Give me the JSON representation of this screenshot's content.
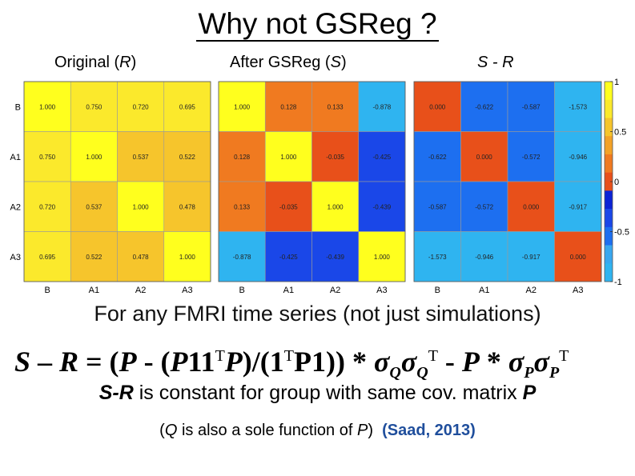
{
  "title": "Why not GSReg ?",
  "panel_labels": {
    "left_text": "Original (",
    "left_var": "R",
    "left_close": ")",
    "mid_text": "After GSReg (",
    "mid_var": "S",
    "mid_close": ")",
    "right_text": "S - R"
  },
  "caption1": "For any FMRI time series (not just simulations)",
  "formula": {
    "lhs_S": "S",
    "minus": " – ",
    "lhs_R": "R",
    "eq": " = (",
    "P1": "P",
    "mid1": " - (",
    "P2": "P",
    "ones1": "11",
    "T1": "T",
    "P3": "P",
    "mid2": ")/(1",
    "T2": "T",
    "P4": "P",
    "mid3": "1))   *  ",
    "sigma1": "σ",
    "subQ1": "Q",
    "sigma2": "σ",
    "subQ2": "Q",
    "T3": "T",
    "mid4": " - ",
    "P5": "P",
    "star": " * ",
    "sigma3": "σ",
    "subP1": "P",
    "sigma4": "σ",
    "subP2": "P",
    "T4": "T"
  },
  "caption2": {
    "var": "S-R",
    "text": " is constant for group with same cov. matrix ",
    "P": "P"
  },
  "caption3": {
    "open": "(",
    "Q": "Q",
    "text": " is also a sole function of ",
    "P": "P",
    "close": ")",
    "citation": "(Saad, 2013)"
  },
  "chart_data": [
    {
      "type": "heatmap",
      "title": "Original (R)",
      "row_labels": [
        "B",
        "A1",
        "A2",
        "A3"
      ],
      "col_labels": [
        "B",
        "A1",
        "A2",
        "A3"
      ],
      "values": [
        [
          1.0,
          0.75,
          0.72,
          0.695
        ],
        [
          0.75,
          1.0,
          0.537,
          0.522
        ],
        [
          0.72,
          0.537,
          1.0,
          0.478
        ],
        [
          0.695,
          0.522,
          0.478,
          1.0
        ]
      ],
      "cell_labels": [
        [
          "1.000",
          "0.750",
          "0.720",
          "0.695"
        ],
        [
          "0.750",
          "1.000",
          "0.537",
          "0.522"
        ],
        [
          "0.720",
          "0.537",
          "1.000",
          "0.478"
        ],
        [
          "0.695",
          "0.522",
          "0.478",
          "1.000"
        ]
      ]
    },
    {
      "type": "heatmap",
      "title": "After GSReg (S)",
      "row_labels": [],
      "col_labels": [
        "B",
        "A1",
        "A2",
        "A3"
      ],
      "values": [
        [
          1.0,
          0.128,
          0.133,
          -0.878
        ],
        [
          0.128,
          1.0,
          -0.035,
          -0.425
        ],
        [
          0.133,
          -0.035,
          1.0,
          -0.439
        ],
        [
          -0.878,
          -0.425,
          -0.439,
          1.0
        ]
      ],
      "cell_labels": [
        [
          "1.000",
          "0.128",
          "0.133",
          "-0.878"
        ],
        [
          "0.128",
          "1.000",
          "-0.035",
          "-0.425"
        ],
        [
          "0.133",
          "-0.035",
          "1.000",
          "-0.439"
        ],
        [
          "-0.878",
          "-0.425",
          "-0.439",
          "1.000"
        ]
      ]
    },
    {
      "type": "heatmap",
      "title": "S - R",
      "row_labels": [],
      "col_labels": [
        "B",
        "A1",
        "A2",
        "A3"
      ],
      "values": [
        [
          0.0,
          -0.622,
          -0.587,
          -1.573
        ],
        [
          -0.622,
          0.0,
          -0.572,
          -0.946
        ],
        [
          -0.587,
          -0.572,
          0.0,
          -0.917
        ],
        [
          -1.573,
          -0.946,
          -0.917,
          0.0
        ]
      ],
      "cell_labels": [
        [
          "0.000",
          "-0.622",
          "-0.587",
          "-1.573"
        ],
        [
          "-0.622",
          "0.000",
          "-0.572",
          "-0.946"
        ],
        [
          "-0.587",
          "-0.572",
          "0.000",
          "-0.917"
        ],
        [
          "-1.573",
          "-0.946",
          "-0.917",
          "0.000"
        ]
      ],
      "colorbar": {
        "range": [
          -1,
          1
        ],
        "ticks": [
          1,
          0.5,
          0,
          -0.5,
          -1
        ],
        "tick_labels": [
          "1",
          "0.5",
          "0",
          "-0.5",
          "-1"
        ]
      }
    }
  ],
  "colormap": [
    "#2fb4f0",
    "#38a7ef",
    "#1d6ff0",
    "#1a47e8",
    "#0c23d6",
    "#e8501a",
    "#f07a20",
    "#f3a227",
    "#f6c52c",
    "#fbe92c",
    "#ffff1e"
  ]
}
